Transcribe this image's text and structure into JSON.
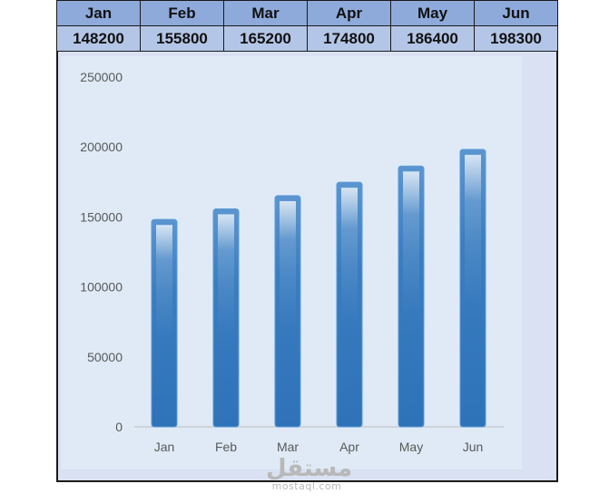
{
  "table": {
    "headers": [
      "Jan",
      "Feb",
      "Mar",
      "Apr",
      "May",
      "Jun"
    ],
    "values": [
      "148200",
      "155800",
      "165200",
      "174800",
      "186400",
      "198300"
    ]
  },
  "chart_data": {
    "type": "bar",
    "categories": [
      "Jan",
      "Feb",
      "Mar",
      "Apr",
      "May",
      "Jun"
    ],
    "values": [
      148200,
      155800,
      165200,
      174800,
      186400,
      198300
    ],
    "title": "",
    "xlabel": "",
    "ylabel": "",
    "ylim": [
      0,
      250000
    ],
    "yticks": [
      0,
      50000,
      100000,
      150000,
      200000,
      250000
    ],
    "grid": false,
    "legend": "none",
    "colors": {
      "bar": "#3a7dc0",
      "bar_light": "#cfe0f2",
      "plot_bg": "#dfeaf6",
      "frame_bg": "#d9e1f2"
    }
  },
  "watermark": {
    "mark": "مستقل",
    "site": "mostaql.com"
  }
}
